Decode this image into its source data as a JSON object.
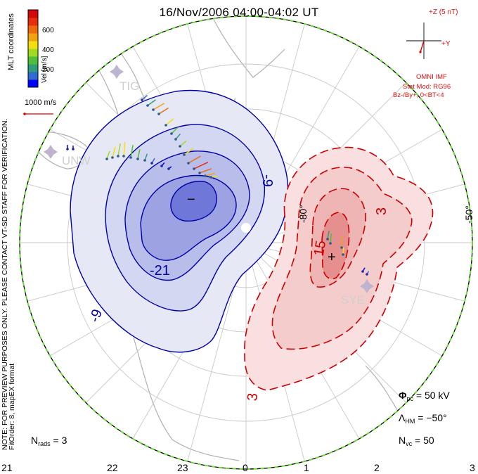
{
  "title": "16/Nov/2006 04:00-04:02 UT",
  "colorbar": {
    "label": "Vel [m/s]",
    "ticks": [
      "600",
      "400",
      "200"
    ],
    "colors": [
      "#0000ff",
      "#2f6bd0",
      "#2e9e7a",
      "#4fbf3a",
      "#9fdc20",
      "#f3df10",
      "#f2a210",
      "#ee6a10",
      "#e62d0e",
      "#d40a0a"
    ]
  },
  "coord_system": "MLT coordinates",
  "scale_vector_label": "1000 m/s",
  "notice": "NOTE: FOR PREVIEW PURPOSES ONLY. PLEASE CONTACT VT-SD STAFF FOR VERIFICATION.",
  "fit_info": "FitOrder: 8, mapEX format",
  "imf": {
    "bz_label": "+Z (5 nT)",
    "by_label": "+Y",
    "source": "OMNI IMF",
    "stat_mod": "Stat Mod: RG96",
    "condition": "Bz-/By+, 0<BT<4"
  },
  "stations": [
    "TIG",
    "UNW",
    "SYE"
  ],
  "latitude_labels": [
    "-80°",
    "-50°"
  ],
  "contour_labels": {
    "negative": [
      "-9",
      "-21",
      "-9"
    ],
    "positive": [
      "3",
      "15",
      "3"
    ]
  },
  "center_markers": {
    "min": "−",
    "max": "+"
  },
  "stats": {
    "nrads_label": "N",
    "nrads_sub": "rads",
    "nrads_value": "= 3",
    "phi_label": "Φ",
    "phi_sub": "pc",
    "phi_value": "= 50 kV",
    "lhm_label": "Λ",
    "lhm_sub": "HM",
    "lhm_value": "= −50°",
    "nvc_label": "N",
    "nvc_sub": "vc",
    "nvc_value": "= 50"
  },
  "mlt_labels": [
    "21",
    "22",
    "23",
    "0",
    "1",
    "2",
    "3"
  ],
  "colors": {
    "negative_potential": "#0000a8",
    "positive_potential": "#cc0000",
    "imf_red": "#dd1111",
    "boundary_green": "#66dd33"
  }
}
